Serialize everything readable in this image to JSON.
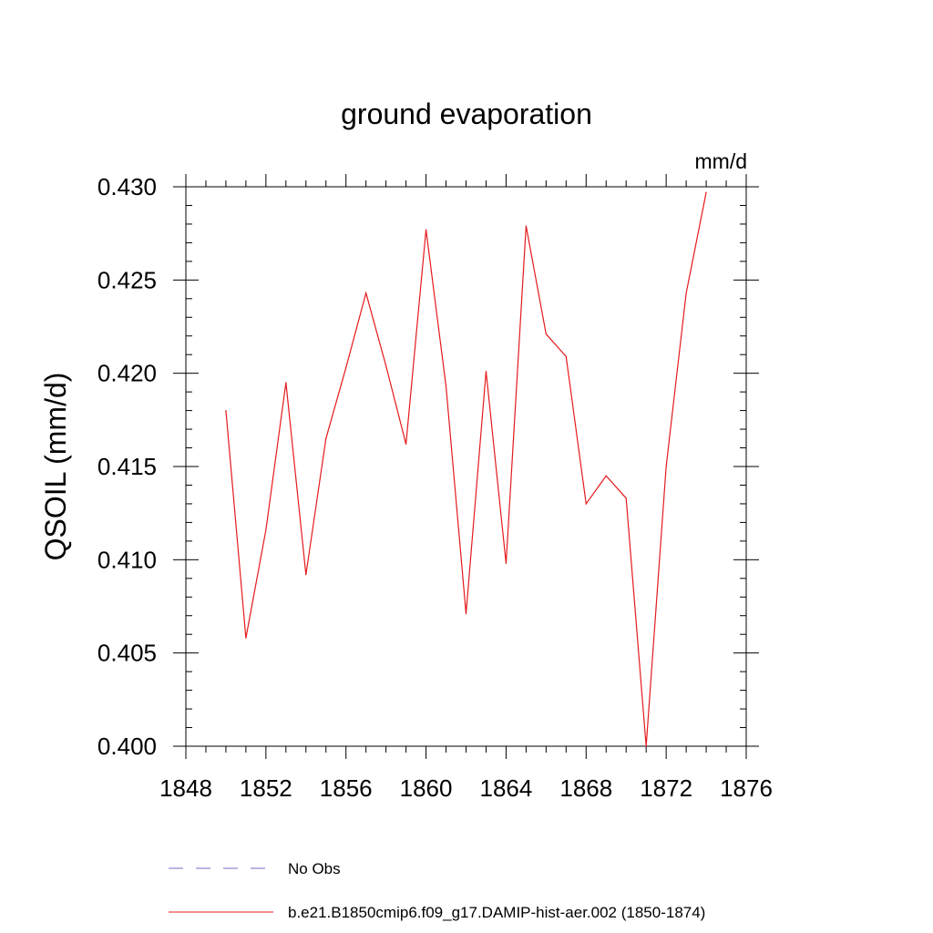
{
  "chart_data": {
    "type": "line",
    "title": "ground evaporation",
    "units": "mm/d",
    "ylabel": "QSOIL  (mm/d)",
    "xlabel": "",
    "xlim": [
      1848,
      1876
    ],
    "ylim": [
      0.4,
      0.43
    ],
    "x_ticks": [
      "1848",
      "1852",
      "1856",
      "1860",
      "1864",
      "1868",
      "1872",
      "1876"
    ],
    "y_ticks": [
      "0.400",
      "0.405",
      "0.410",
      "0.415",
      "0.420",
      "0.425",
      "0.430"
    ],
    "grid": false,
    "series": [
      {
        "name": "b.e21.B1850cmip6.f09_g17.DAMIP-hist-aer.002 (1850-1874)",
        "color": "#e41a1c",
        "x": [
          1850,
          1851,
          1852,
          1853,
          1854,
          1855,
          1856,
          1857,
          1858,
          1859,
          1860,
          1861,
          1862,
          1863,
          1864,
          1865,
          1866,
          1867,
          1868,
          1869,
          1870,
          1871,
          1872,
          1873,
          1874
        ],
        "y": [
          0.418,
          0.4058,
          0.4116,
          0.4195,
          0.4092,
          0.4165,
          0.4203,
          0.4243,
          0.4204,
          0.4162,
          0.4277,
          0.4193,
          0.4071,
          0.4201,
          0.4098,
          0.4279,
          0.4221,
          0.4209,
          0.413,
          0.4145,
          0.4133,
          0.4,
          0.415,
          0.4243,
          0.4297
        ]
      }
    ],
    "legend": [
      {
        "label": "No Obs",
        "style": "dashed",
        "color": "#7b68c8"
      },
      {
        "label": "b.e21.B1850cmip6.f09_g17.DAMIP-hist-aer.002 (1850-1874)",
        "style": "solid",
        "color": "#e41a1c"
      }
    ]
  }
}
